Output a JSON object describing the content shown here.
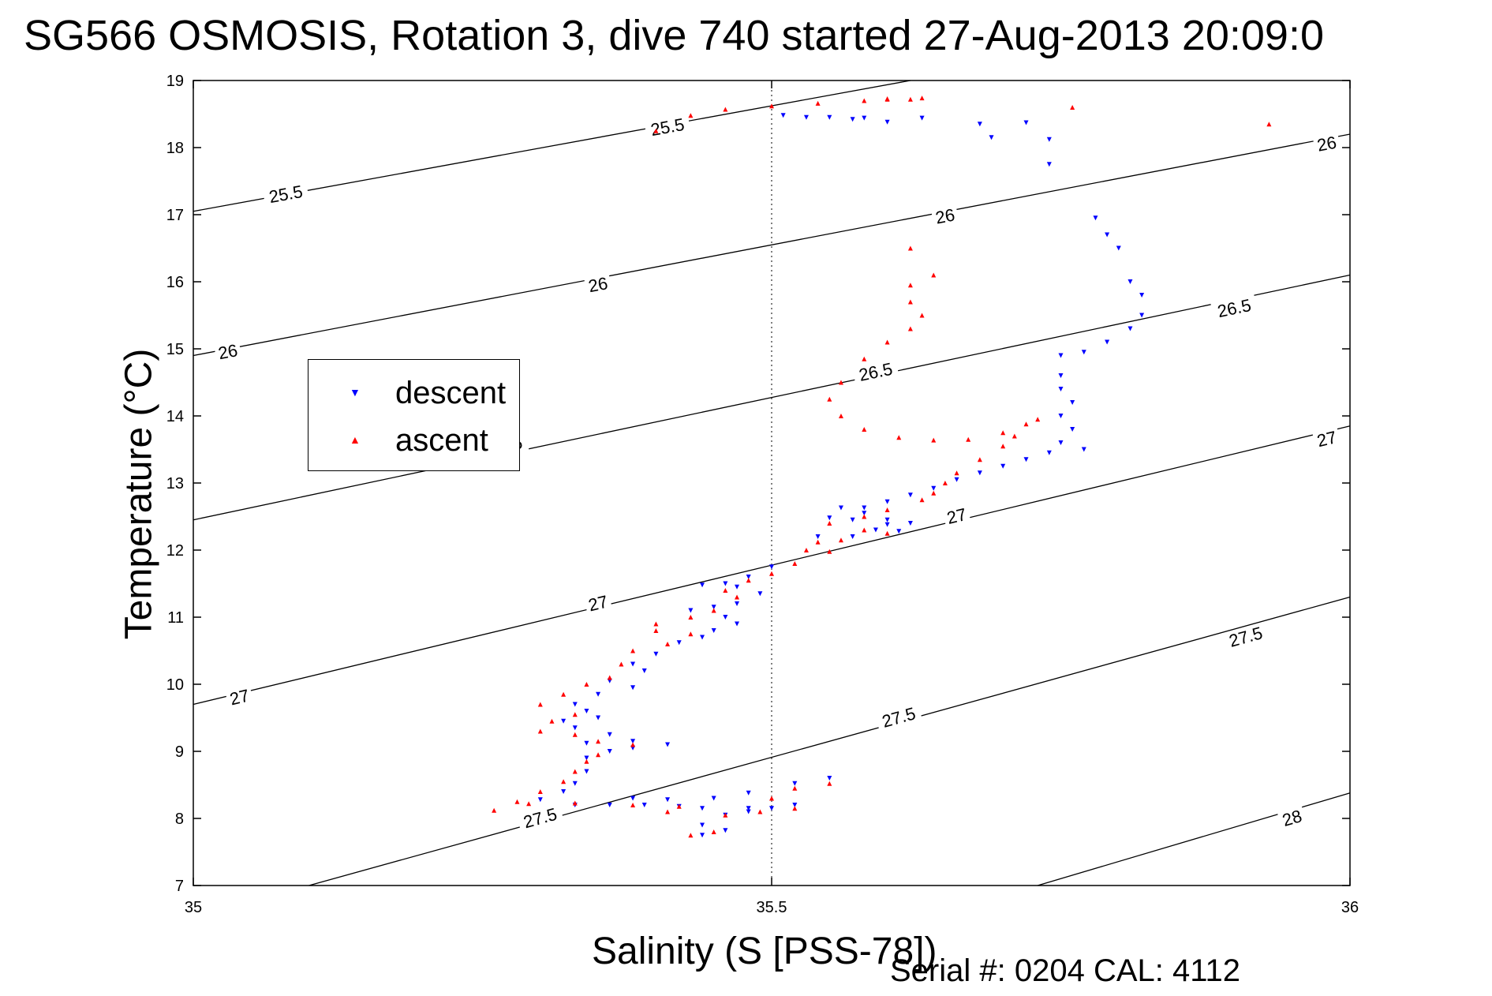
{
  "title": "SG566 OSMOSIS, Rotation 3, dive 740 started 27-Aug-2013 20:09:0",
  "footer": "Serial #: 0204  CAL: 4112",
  "chart_data": {
    "type": "scatter",
    "xlabel": "Salinity (S [PSS-78])",
    "ylabel": "Temperature (°C)",
    "xlim": [
      35,
      36
    ],
    "ylim": [
      7,
      19
    ],
    "xticks": [
      "35",
      "35.5",
      "36"
    ],
    "yticks": [
      "7",
      "8",
      "9",
      "10",
      "11",
      "12",
      "13",
      "14",
      "15",
      "16",
      "17",
      "18",
      "19"
    ],
    "grid": "dotted at x=35.5",
    "legend_position": "left-middle",
    "contours": [
      {
        "label": "25.5",
        "points": [
          [
            35.0,
            17.05
          ],
          [
            35.62,
            19.0
          ]
        ],
        "labels_at": [
          [
            35.08,
            17.3
          ],
          [
            35.41,
            18.3
          ]
        ]
      },
      {
        "label": "26",
        "points": [
          [
            35.0,
            14.9
          ],
          [
            36.0,
            18.2
          ]
        ],
        "labels_at": [
          [
            35.03,
            14.95
          ],
          [
            35.35,
            15.95
          ],
          [
            35.65,
            16.97
          ],
          [
            35.98,
            18.05
          ]
        ]
      },
      {
        "label": "26.5",
        "points": [
          [
            35.0,
            12.45
          ],
          [
            36.0,
            16.1
          ]
        ],
        "labels_at": [
          [
            35.27,
            13.55
          ],
          [
            35.59,
            14.65
          ],
          [
            35.9,
            15.6
          ]
        ]
      },
      {
        "label": "27",
        "points": [
          [
            35.0,
            9.7
          ],
          [
            36.0,
            13.85
          ]
        ],
        "labels_at": [
          [
            35.04,
            9.8
          ],
          [
            35.35,
            11.2
          ],
          [
            35.66,
            12.5
          ],
          [
            35.98,
            13.65
          ]
        ]
      },
      {
        "label": "27.5",
        "points": [
          [
            35.1,
            7.0
          ],
          [
            36.0,
            11.3
          ]
        ],
        "labels_at": [
          [
            35.3,
            8.0
          ],
          [
            35.61,
            9.5
          ],
          [
            35.91,
            10.7
          ]
        ]
      },
      {
        "label": "28",
        "points": [
          [
            35.73,
            7.0
          ],
          [
            36.0,
            8.38
          ]
        ],
        "labels_at": [
          [
            35.95,
            8.0
          ]
        ]
      }
    ],
    "series": [
      {
        "name": "descent",
        "color": "#0000ff",
        "marker": "triangle-down",
        "points": [
          [
            35.51,
            18.48
          ],
          [
            35.53,
            18.45
          ],
          [
            35.55,
            18.45
          ],
          [
            35.57,
            18.42
          ],
          [
            35.58,
            18.44
          ],
          [
            35.6,
            18.38
          ],
          [
            35.63,
            18.44
          ],
          [
            35.68,
            18.35
          ],
          [
            35.72,
            18.37
          ],
          [
            35.74,
            18.12
          ],
          [
            35.69,
            18.15
          ],
          [
            35.74,
            17.75
          ],
          [
            35.78,
            16.95
          ],
          [
            35.79,
            16.7
          ],
          [
            35.8,
            16.5
          ],
          [
            35.81,
            16.0
          ],
          [
            35.82,
            15.8
          ],
          [
            35.82,
            15.5
          ],
          [
            35.81,
            15.3
          ],
          [
            35.79,
            15.1
          ],
          [
            35.77,
            14.95
          ],
          [
            35.75,
            14.9
          ],
          [
            35.75,
            14.6
          ],
          [
            35.75,
            14.4
          ],
          [
            35.76,
            14.2
          ],
          [
            35.75,
            14.0
          ],
          [
            35.76,
            13.8
          ],
          [
            35.75,
            13.6
          ],
          [
            35.77,
            13.5
          ],
          [
            35.74,
            13.45
          ],
          [
            35.72,
            13.35
          ],
          [
            35.7,
            13.25
          ],
          [
            35.68,
            13.15
          ],
          [
            35.66,
            13.05
          ],
          [
            35.64,
            12.92
          ],
          [
            35.62,
            12.82
          ],
          [
            35.6,
            12.72
          ],
          [
            35.58,
            12.63
          ],
          [
            35.56,
            12.63
          ],
          [
            35.58,
            12.55
          ],
          [
            35.6,
            12.45
          ],
          [
            35.62,
            12.4
          ],
          [
            35.6,
            12.38
          ],
          [
            35.57,
            12.45
          ],
          [
            35.55,
            12.48
          ],
          [
            35.59,
            12.3
          ],
          [
            35.61,
            12.28
          ],
          [
            35.57,
            12.2
          ],
          [
            35.54,
            12.2
          ],
          [
            35.5,
            11.75
          ],
          [
            35.48,
            11.6
          ],
          [
            35.46,
            11.5
          ],
          [
            35.44,
            11.48
          ],
          [
            35.47,
            11.45
          ],
          [
            35.49,
            11.35
          ],
          [
            35.47,
            11.2
          ],
          [
            35.45,
            11.15
          ],
          [
            35.43,
            11.1
          ],
          [
            35.46,
            11.0
          ],
          [
            35.47,
            10.9
          ],
          [
            35.45,
            10.8
          ],
          [
            35.44,
            10.7
          ],
          [
            35.42,
            10.62
          ],
          [
            35.4,
            10.45
          ],
          [
            35.38,
            10.3
          ],
          [
            35.39,
            10.2
          ],
          [
            35.36,
            10.05
          ],
          [
            35.38,
            9.95
          ],
          [
            35.35,
            9.85
          ],
          [
            35.33,
            9.7
          ],
          [
            35.34,
            9.6
          ],
          [
            35.35,
            9.5
          ],
          [
            35.32,
            9.45
          ],
          [
            35.33,
            9.35
          ],
          [
            35.36,
            9.25
          ],
          [
            35.34,
            9.12
          ],
          [
            35.38,
            9.15
          ],
          [
            35.41,
            9.1
          ],
          [
            35.38,
            9.05
          ],
          [
            35.36,
            9.0
          ],
          [
            35.34,
            8.9
          ],
          [
            35.34,
            8.7
          ],
          [
            35.33,
            8.52
          ],
          [
            35.32,
            8.4
          ],
          [
            35.3,
            8.28
          ],
          [
            35.33,
            8.2
          ],
          [
            35.36,
            8.2
          ],
          [
            35.39,
            8.2
          ],
          [
            35.42,
            8.18
          ],
          [
            35.44,
            8.15
          ],
          [
            35.41,
            8.28
          ],
          [
            35.38,
            8.3
          ],
          [
            35.45,
            8.3
          ],
          [
            35.48,
            8.38
          ],
          [
            35.52,
            8.52
          ],
          [
            35.55,
            8.6
          ],
          [
            35.52,
            8.2
          ],
          [
            35.48,
            8.15
          ],
          [
            35.46,
            8.05
          ],
          [
            35.44,
            7.9
          ],
          [
            35.46,
            7.82
          ],
          [
            35.48,
            8.1
          ],
          [
            35.5,
            8.15
          ],
          [
            35.44,
            7.75
          ]
        ]
      },
      {
        "name": "ascent",
        "color": "#ff0000",
        "marker": "triangle-up",
        "points": [
          [
            35.4,
            18.25
          ],
          [
            35.43,
            18.48
          ],
          [
            35.46,
            18.57
          ],
          [
            35.5,
            18.62
          ],
          [
            35.54,
            18.66
          ],
          [
            35.58,
            18.7
          ],
          [
            35.6,
            18.72
          ],
          [
            35.62,
            18.72
          ],
          [
            35.63,
            18.74
          ],
          [
            35.6,
            18.73
          ],
          [
            35.76,
            18.6
          ],
          [
            35.93,
            18.35
          ],
          [
            35.62,
            16.5
          ],
          [
            35.64,
            16.1
          ],
          [
            35.62,
            15.95
          ],
          [
            35.62,
            15.7
          ],
          [
            35.63,
            15.5
          ],
          [
            35.62,
            15.3
          ],
          [
            35.6,
            15.1
          ],
          [
            35.58,
            14.85
          ],
          [
            35.56,
            14.5
          ],
          [
            35.55,
            14.25
          ],
          [
            35.56,
            14.0
          ],
          [
            35.58,
            13.8
          ],
          [
            35.61,
            13.68
          ],
          [
            35.64,
            13.64
          ],
          [
            35.67,
            13.65
          ],
          [
            35.7,
            13.75
          ],
          [
            35.72,
            13.88
          ],
          [
            35.73,
            13.95
          ],
          [
            35.71,
            13.7
          ],
          [
            35.7,
            13.55
          ],
          [
            35.68,
            13.35
          ],
          [
            35.66,
            13.15
          ],
          [
            35.65,
            13.0
          ],
          [
            35.64,
            12.85
          ],
          [
            35.63,
            12.75
          ],
          [
            35.6,
            12.6
          ],
          [
            35.58,
            12.5
          ],
          [
            35.55,
            12.4
          ],
          [
            35.58,
            12.3
          ],
          [
            35.6,
            12.25
          ],
          [
            35.56,
            12.15
          ],
          [
            35.54,
            12.12
          ],
          [
            35.53,
            12.0
          ],
          [
            35.55,
            11.98
          ],
          [
            35.52,
            11.8
          ],
          [
            35.5,
            11.65
          ],
          [
            35.48,
            11.55
          ],
          [
            35.46,
            11.4
          ],
          [
            35.47,
            11.3
          ],
          [
            35.45,
            11.1
          ],
          [
            35.43,
            11.0
          ],
          [
            35.4,
            10.9
          ],
          [
            35.43,
            10.75
          ],
          [
            35.41,
            10.6
          ],
          [
            35.38,
            10.5
          ],
          [
            35.37,
            10.3
          ],
          [
            35.36,
            10.1
          ],
          [
            35.34,
            10.0
          ],
          [
            35.32,
            9.85
          ],
          [
            35.3,
            9.7
          ],
          [
            35.33,
            9.55
          ],
          [
            35.31,
            9.45
          ],
          [
            35.3,
            9.3
          ],
          [
            35.33,
            9.25
          ],
          [
            35.35,
            9.15
          ],
          [
            35.38,
            9.1
          ],
          [
            35.35,
            8.95
          ],
          [
            35.34,
            8.85
          ],
          [
            35.33,
            8.7
          ],
          [
            35.32,
            8.55
          ],
          [
            35.3,
            8.4
          ],
          [
            35.28,
            8.25
          ],
          [
            35.26,
            8.12
          ],
          [
            35.29,
            8.22
          ],
          [
            35.33,
            8.23
          ],
          [
            35.38,
            8.2
          ],
          [
            35.42,
            8.18
          ],
          [
            35.46,
            8.05
          ],
          [
            35.49,
            8.1
          ],
          [
            35.52,
            8.15
          ],
          [
            35.5,
            8.3
          ],
          [
            35.52,
            8.45
          ],
          [
            35.55,
            8.52
          ],
          [
            35.45,
            7.8
          ],
          [
            35.43,
            7.75
          ],
          [
            35.41,
            8.1
          ],
          [
            35.4,
            10.8
          ]
        ]
      }
    ]
  }
}
